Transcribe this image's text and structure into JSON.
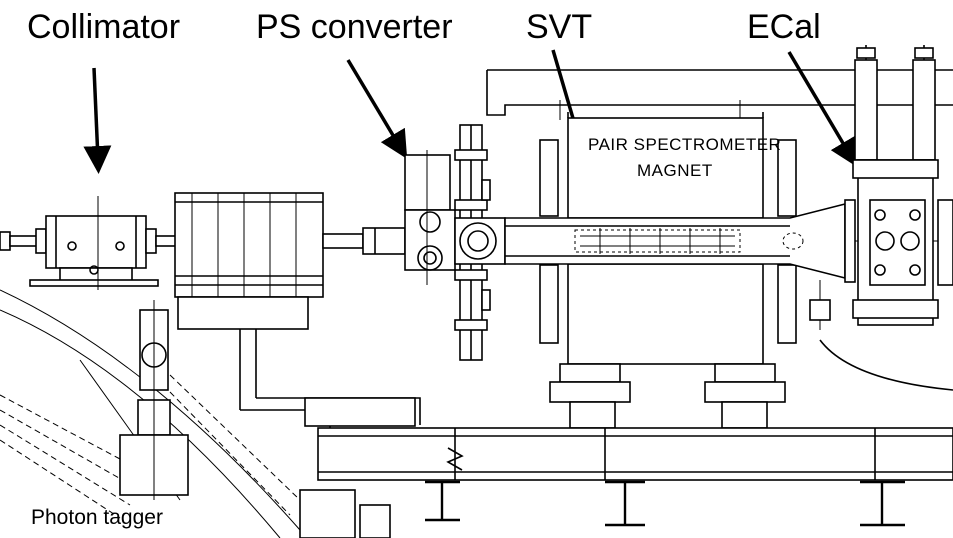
{
  "labels": {
    "collimator": "Collimator",
    "ps_converter": "PS converter",
    "svt": "SVT",
    "ecal": "ECal",
    "magnet_line1": "PAIR SPECTROMETER",
    "magnet_line2": "MAGNET",
    "photon_tagger": "Photon tagger"
  }
}
